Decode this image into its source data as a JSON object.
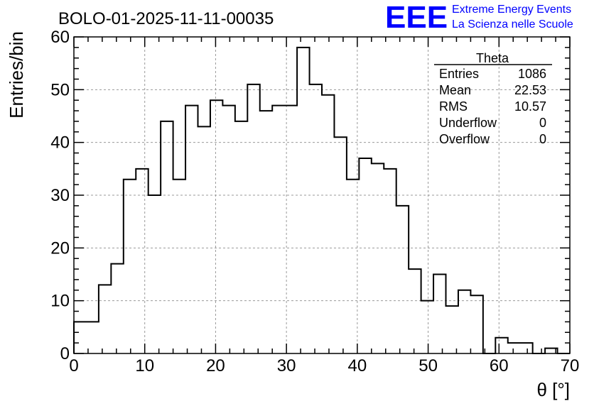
{
  "title": "BOLO-01-2025-11-11-00035",
  "logo": {
    "mark": "EEE",
    "line1": "Extreme Energy Events",
    "line2": "La Scienza nelle Scuole",
    "color": "#0000ff"
  },
  "stats": {
    "title": "Theta",
    "rows": [
      {
        "label": "Entries",
        "value": "1086"
      },
      {
        "label": "Mean",
        "value": "22.53"
      },
      {
        "label": "RMS",
        "value": "10.57"
      },
      {
        "label": "Underflow",
        "value": "0"
      },
      {
        "label": "Overflow",
        "value": "0"
      }
    ]
  },
  "chart_data": {
    "type": "bar",
    "subtype": "histogram",
    "title": "BOLO-01-2025-11-11-00035",
    "xlabel": "θ [°]",
    "ylabel": "Entries/bin",
    "xlim": [
      0,
      70
    ],
    "ylim": [
      0,
      60
    ],
    "x_ticks": [
      0,
      10,
      20,
      30,
      40,
      50,
      60,
      70
    ],
    "y_ticks": [
      0,
      10,
      20,
      30,
      40,
      50,
      60
    ],
    "grid": true,
    "legend": "top-right",
    "bin_width": 1.75,
    "bin_edges_start": 0,
    "values": [
      6,
      6,
      13,
      17,
      33,
      35,
      30,
      44,
      33,
      47,
      43,
      48,
      47,
      44,
      51,
      46,
      47,
      47,
      58,
      51,
      49,
      41,
      33,
      37,
      36,
      35,
      28,
      16,
      10,
      15,
      9,
      12,
      11,
      0,
      3,
      2,
      2,
      0,
      1,
      0
    ]
  }
}
